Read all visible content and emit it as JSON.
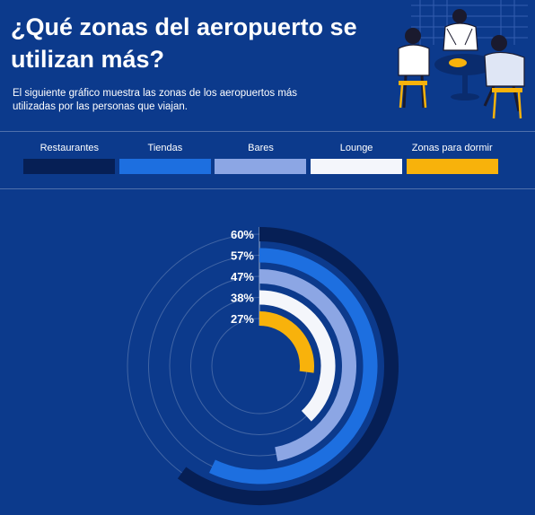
{
  "header": {
    "title": "¿Qué zonas del aeropuerto se utilizan más?",
    "subtitle": "El siguiente gráfico muestra las zonas de los aeropuertos más utilizadas por las personas que viajan."
  },
  "colors": {
    "background": "#0c3a8c",
    "restaurantes": "#061f55",
    "tiendas": "#1d6fe0",
    "bares": "#8ca6e4",
    "lounge": "#f4f6fb",
    "zonas_para_dormir": "#f8b20b"
  },
  "illustration": {
    "icon": "people-at-airport-table-illustration"
  },
  "chart_data": {
    "type": "radial-bar",
    "unit": "%",
    "series": [
      {
        "name": "Restaurantes",
        "value": 60,
        "label": "60%",
        "color": "#061f55"
      },
      {
        "name": "Tiendas",
        "value": 57,
        "label": "57%",
        "color": "#1d6fe0"
      },
      {
        "name": "Bares",
        "value": 47,
        "label": "47%",
        "color": "#8ca6e4"
      },
      {
        "name": "Lounge",
        "value": 38,
        "label": "38%",
        "color": "#f4f6fb"
      },
      {
        "name": "Zonas para dormir",
        "value": 27,
        "label": "27%",
        "color": "#f8b20b"
      }
    ],
    "max": 100,
    "legend_position": "top"
  }
}
